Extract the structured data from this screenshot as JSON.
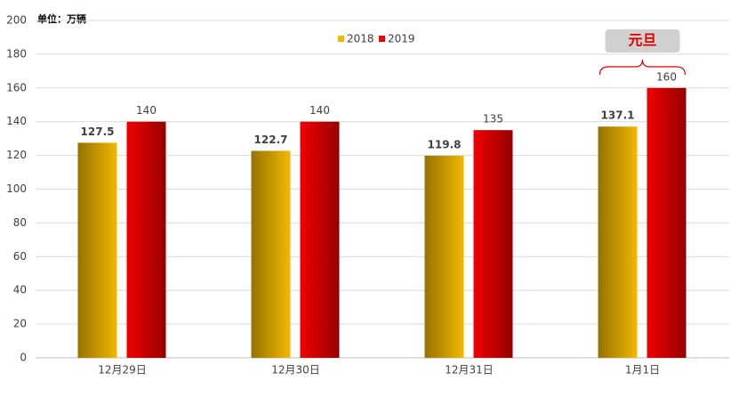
{
  "chart_data": {
    "type": "bar",
    "unit_label": "单位：万辆",
    "categories": [
      "12月29日",
      "12月30日",
      "12月31日",
      "1月1日"
    ],
    "series": [
      {
        "name": "2018",
        "color": "#f2b800",
        "values": [
          127.5,
          122.7,
          119.8,
          137.1
        ]
      },
      {
        "name": "2019",
        "color": "#f00000",
        "values": [
          140,
          140,
          135,
          160
        ]
      }
    ],
    "ylim": [
      0,
      200
    ],
    "yticks": [
      0,
      20,
      40,
      60,
      80,
      100,
      120,
      140,
      160,
      180,
      200
    ],
    "grid": true,
    "annotation": "元旦",
    "legend": "top"
  }
}
